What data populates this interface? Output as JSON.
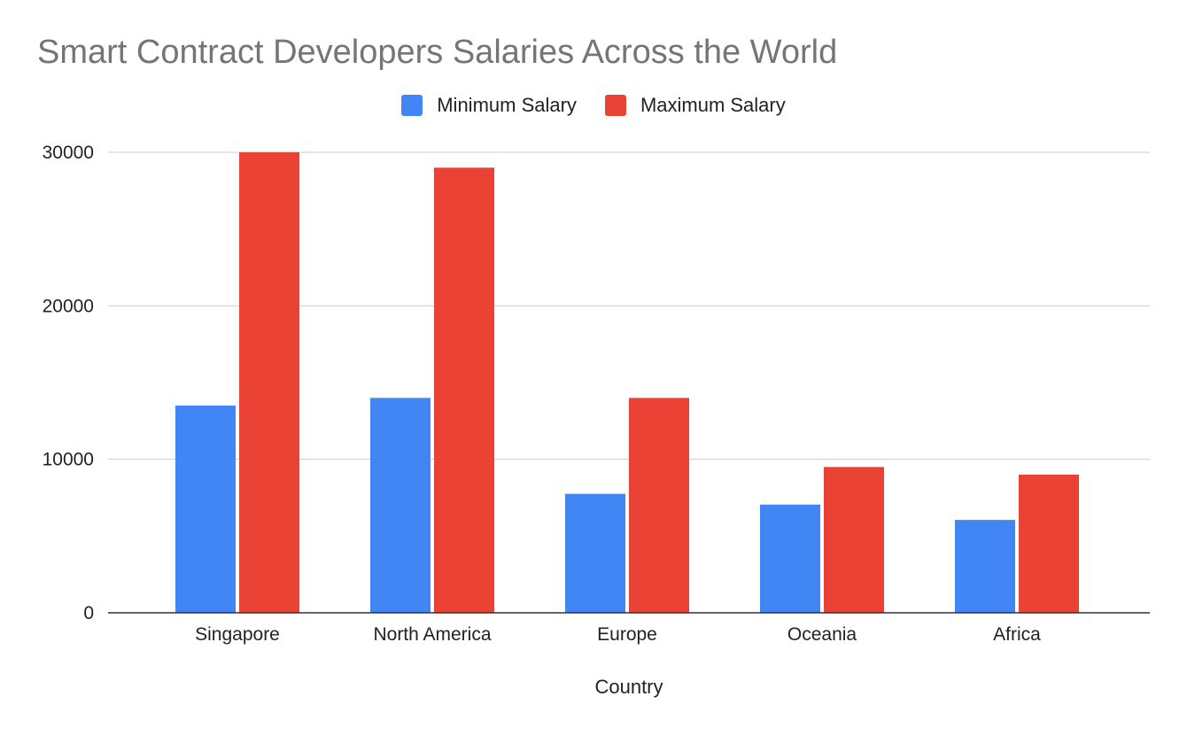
{
  "chart_data": {
    "type": "bar",
    "title": "Smart Contract Developers Salaries Across the World",
    "xlabel": "Country",
    "ylabel": "",
    "categories": [
      "Singapore",
      "North America",
      "Europe",
      "Oceania",
      "Africa"
    ],
    "series": [
      {
        "name": "Minimum Salary",
        "color": "#4285f4",
        "values": [
          13500,
          14000,
          7750,
          7050,
          6050
        ]
      },
      {
        "name": "Maximum Salary",
        "color": "#ea4335",
        "values": [
          30000,
          29000,
          14000,
          9500,
          9000
        ]
      }
    ],
    "ylim": [
      0,
      30000
    ],
    "yticks": [
      0,
      10000,
      20000,
      30000
    ],
    "ytick_labels": [
      "0",
      "10000",
      "20000",
      "30000"
    ],
    "grid": true,
    "legend_position": "top-center"
  }
}
